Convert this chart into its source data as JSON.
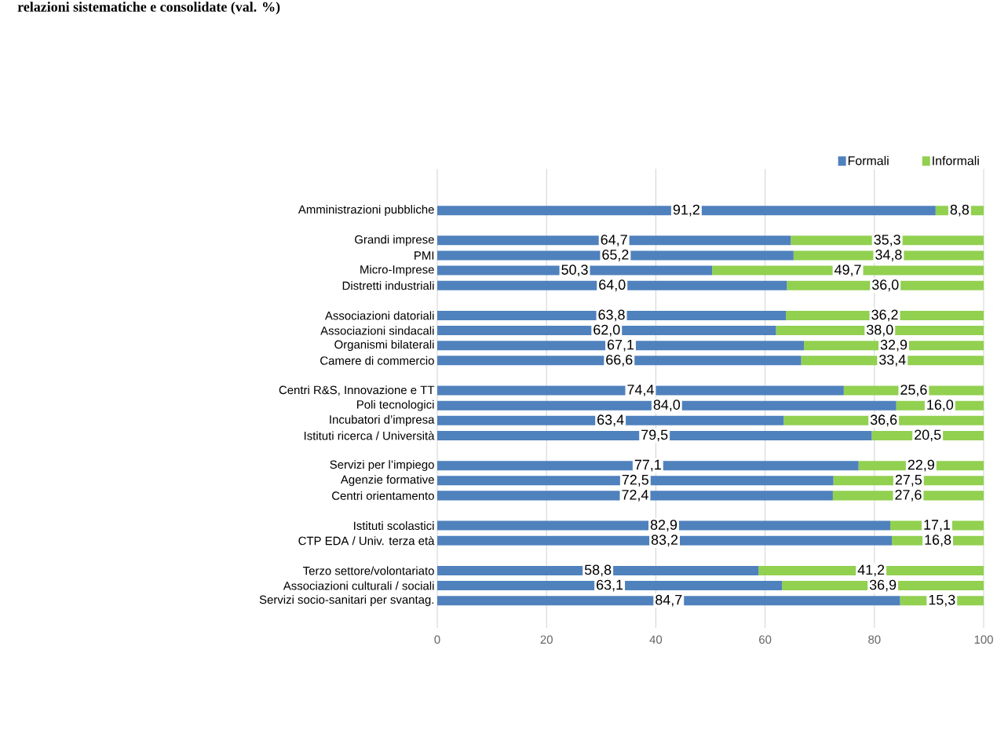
{
  "chart_data": {
    "type": "bar",
    "orientation": "horizontal",
    "stacked": true,
    "title": "relazioni sistematiche e consolidate (val. %)",
    "categories": [
      "Amministrazioni pubbliche",
      null,
      "Grandi imprese",
      "PMI",
      "Micro-Imprese",
      "Distretti industriali",
      null,
      "Associazioni datoriali",
      "Associazioni sindacali",
      "Organismi bilaterali",
      "Camere di commercio",
      null,
      "Centri R&S, Innovazione e TT",
      "Poli tecnologici",
      "Incubatori d’impresa",
      "Istituti ricerca / Università",
      null,
      "Servizi per l’impiego",
      "Agenzie formative",
      "Centri orientamento",
      null,
      "Istituti scolastici",
      "CTP EDA / Univ. terza età",
      null,
      "Terzo settore/volontariato",
      "Associazioni culturali / sociali",
      "Servizi socio-sanitari per svantag."
    ],
    "series": [
      {
        "name": "Formali",
        "color": "#4f81bd",
        "values": [
          91.2,
          null,
          64.7,
          65.2,
          50.3,
          64.0,
          null,
          63.8,
          62.0,
          67.1,
          66.6,
          null,
          74.4,
          84.0,
          63.4,
          79.5,
          null,
          77.1,
          72.5,
          72.4,
          null,
          82.9,
          83.2,
          null,
          58.8,
          63.1,
          84.7
        ],
        "value_labels": [
          "91,2",
          null,
          "64,7",
          "65,2",
          "50,3",
          "64,0",
          null,
          "63,8",
          "62,0",
          "67,1",
          "66,6",
          null,
          "74,4",
          "84,0",
          "63,4",
          "79,5",
          null,
          "77,1",
          "72,5",
          "72,4",
          null,
          "82,9",
          "83,2",
          null,
          "58,8",
          "63,1",
          "84,7"
        ]
      },
      {
        "name": "Informali",
        "color": "#92d050",
        "values": [
          8.8,
          null,
          35.3,
          34.8,
          49.7,
          36.0,
          null,
          36.2,
          38.0,
          32.9,
          33.4,
          null,
          25.6,
          16.0,
          36.6,
          20.5,
          null,
          22.9,
          27.5,
          27.6,
          null,
          17.1,
          16.8,
          null,
          41.2,
          36.9,
          15.3
        ],
        "value_labels": [
          "8,8",
          null,
          "35,3",
          "34,8",
          "49,7",
          "36,0",
          null,
          "36,2",
          "38,0",
          "32,9",
          "33,4",
          null,
          "25,6",
          "16,0",
          "36,6",
          "20,5",
          null,
          "22,9",
          "27,5",
          "27,6",
          null,
          "17,1",
          "16,8",
          null,
          "41,2",
          "36,9",
          "15,3"
        ]
      }
    ],
    "xlim": [
      0,
      100
    ],
    "xticks": [
      0,
      20,
      40,
      60,
      80,
      100
    ],
    "grid": "x",
    "legend": "top right"
  }
}
